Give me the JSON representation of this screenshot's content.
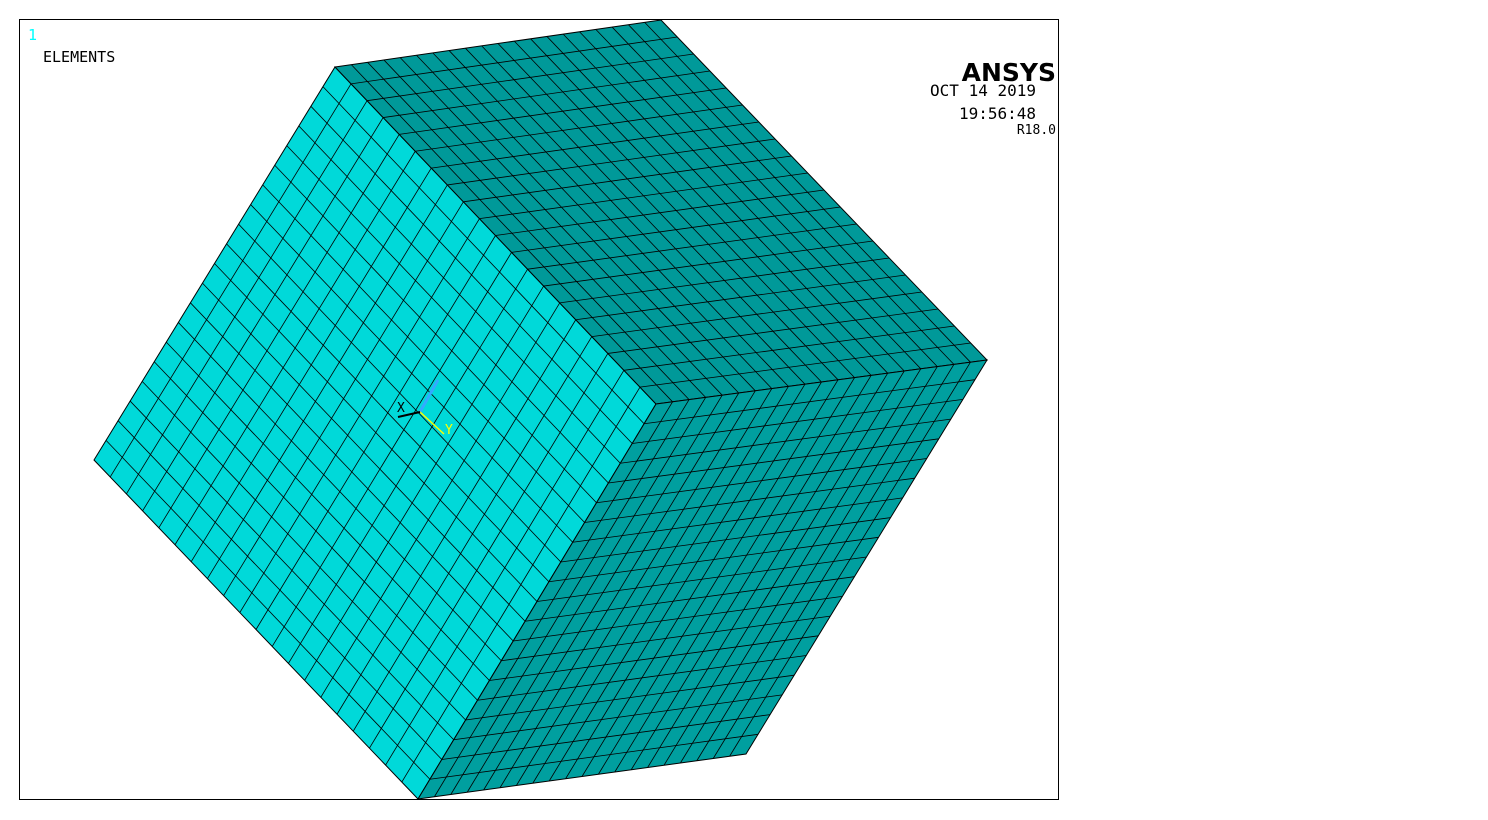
{
  "window_number": "1",
  "plot_title": "ELEMENTS",
  "logo": {
    "name": "ANSYS",
    "version": "R18.0"
  },
  "timestamp": {
    "date": "OCT 14 2019",
    "time": "19:56:48"
  },
  "triad": {
    "x_label": "X",
    "y_label": "Y"
  },
  "mesh": {
    "divisions": 20
  },
  "colors": {
    "window_number": "#00ffff",
    "front_face": "#00d9d9",
    "top_face": "#009999",
    "right_face": "#009f9f",
    "mesh_lines": "#000000",
    "triad_x": "#000000",
    "triad_y": "#ffff00",
    "triad_z": "#33aaff"
  }
}
